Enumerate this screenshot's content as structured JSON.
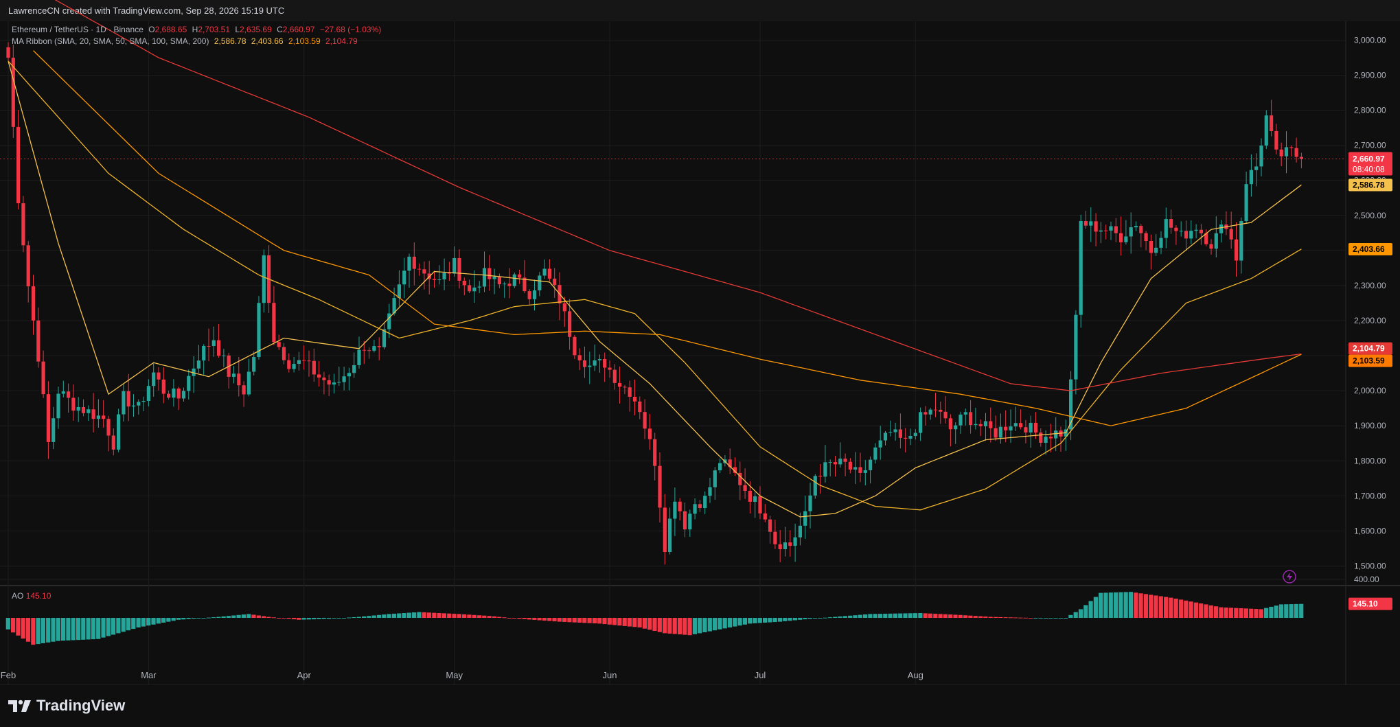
{
  "header": {
    "credit": "LawrenceCN created with TradingView.com, Sep 28, 2026 15:19 UTC"
  },
  "legend": {
    "symbol": "Ethereum / TetherUS · 1D · Binance",
    "o_label": "O",
    "o_value": "2,688.65",
    "h_label": "H",
    "h_value": "2,703.51",
    "l_label": "L",
    "l_value": "2,635.69",
    "c_label": "C",
    "c_value": "2,660.97",
    "change": "−27.68 (−1.03%)",
    "ma_title": "MA Ribbon (SMA, 20, SMA, 50, SMA, 100, SMA, 200)",
    "ma20": "2,586.78",
    "ma50": "2,403.66",
    "ma100": "2,103.59",
    "ma200": "2,104.79"
  },
  "ao_legend": {
    "name": "AO",
    "value": "145.10"
  },
  "price_badges": {
    "last_price": "2,660.97",
    "countdown": "08:40:08",
    "ma20": "2,586.78",
    "ma50": "2,403.66",
    "ma200": "2,104.79",
    "ma100": "2,103.59",
    "ao": "145.10"
  },
  "brand": {
    "name": "TradingView"
  },
  "colors": {
    "up": "#26a69a",
    "down": "#f23645",
    "ma20": "#f5c14d",
    "ma50": "#f0b429",
    "ma100": "#ff9800",
    "ma200": "#e53935",
    "grid": "#1e1e1e",
    "background": "#0f0f0f"
  },
  "chart_data": [
    {
      "type": "candlestick",
      "title": "Ethereum / TetherUS · 1D · Binance",
      "y_ticks": [
        "1,500.00",
        "1,600.00",
        "1,700.00",
        "1,800.00",
        "1,900.00",
        "2,000.00",
        "2,100.00",
        "2,200.00",
        "2,300.00",
        "2,400.00",
        "2,500.00",
        "2,600.00",
        "2,700.00",
        "2,800.00",
        "2,900.00",
        "3,000.00"
      ],
      "x_ticks": [
        "Feb",
        "Mar",
        "Apr",
        "May",
        "Jun",
        "Jul",
        "Aug"
      ],
      "ylim": [
        1450,
        3040
      ],
      "start_date": "2026-02-01",
      "close_anchors": [
        [
          0,
          2950
        ],
        [
          2,
          2550
        ],
        [
          4,
          2300
        ],
        [
          6,
          2100
        ],
        [
          8,
          1850
        ],
        [
          10,
          2000
        ],
        [
          13,
          1960
        ],
        [
          16,
          1940
        ],
        [
          19,
          1920
        ],
        [
          21,
          1850
        ],
        [
          23,
          1980
        ],
        [
          26,
          1950
        ],
        [
          29,
          2050
        ],
        [
          31,
          2000
        ],
        [
          34,
          1980
        ],
        [
          38,
          2100
        ],
        [
          41,
          2150
        ],
        [
          44,
          2050
        ],
        [
          47,
          2000
        ],
        [
          49,
          2100
        ],
        [
          51,
          2380
        ],
        [
          53,
          2150
        ],
        [
          56,
          2080
        ],
        [
          59,
          2080
        ],
        [
          62,
          2040
        ],
        [
          65,
          2010
        ],
        [
          68,
          2060
        ],
        [
          71,
          2130
        ],
        [
          74,
          2110
        ],
        [
          77,
          2250
        ],
        [
          80,
          2380
        ],
        [
          83,
          2340
        ],
        [
          86,
          2310
        ],
        [
          89,
          2360
        ],
        [
          92,
          2280
        ],
        [
          95,
          2330
        ],
        [
          98,
          2300
        ],
        [
          101,
          2320
        ],
        [
          104,
          2280
        ],
        [
          107,
          2340
        ],
        [
          110,
          2260
        ],
        [
          113,
          2120
        ],
        [
          116,
          2070
        ],
        [
          119,
          2080
        ],
        [
          122,
          2020
        ],
        [
          124,
          2000
        ],
        [
          126,
          1950
        ],
        [
          129,
          1800
        ],
        [
          131,
          1560
        ],
        [
          133,
          1700
        ],
        [
          135,
          1620
        ],
        [
          137,
          1680
        ],
        [
          139,
          1690
        ],
        [
          142,
          1800
        ],
        [
          145,
          1760
        ],
        [
          148,
          1700
        ],
        [
          151,
          1650
        ],
        [
          153,
          1570
        ],
        [
          156,
          1560
        ],
        [
          159,
          1640
        ],
        [
          161,
          1760
        ],
        [
          164,
          1790
        ],
        [
          167,
          1790
        ],
        [
          170,
          1750
        ],
        [
          173,
          1830
        ],
        [
          176,
          1880
        ],
        [
          179,
          1850
        ],
        [
          182,
          1920
        ],
        [
          185,
          1950
        ],
        [
          188,
          1890
        ],
        [
          191,
          1930
        ],
        [
          194,
          1900
        ],
        [
          197,
          1880
        ],
        [
          200,
          1910
        ],
        [
          203,
          1900
        ],
        [
          206,
          1870
        ],
        [
          209,
          1880
        ],
        [
          211,
          1880
        ],
        [
          213,
          2200
        ],
        [
          214,
          2480
        ],
        [
          216,
          2470
        ],
        [
          219,
          2460
        ],
        [
          222,
          2440
        ],
        [
          225,
          2480
        ],
        [
          228,
          2400
        ],
        [
          231,
          2480
        ],
        [
          234,
          2440
        ],
        [
          237,
          2470
        ],
        [
          240,
          2420
        ],
        [
          243,
          2480
        ],
        [
          245,
          2380
        ],
        [
          247,
          2600
        ],
        [
          249,
          2640
        ],
        [
          251,
          2780
        ],
        [
          253,
          2670
        ],
        [
          256,
          2680
        ],
        [
          258,
          2661
        ]
      ],
      "ma_names": [
        "MA20",
        "MA50",
        "MA100",
        "MA200"
      ],
      "ma_anchors": {
        "MA20": [
          [
            0,
            2940
          ],
          [
            10,
            2420
          ],
          [
            20,
            1990
          ],
          [
            29,
            2080
          ],
          [
            40,
            2040
          ],
          [
            55,
            2150
          ],
          [
            70,
            2120
          ],
          [
            85,
            2340
          ],
          [
            95,
            2330
          ],
          [
            108,
            2310
          ],
          [
            118,
            2140
          ],
          [
            128,
            2020
          ],
          [
            140,
            1840
          ],
          [
            150,
            1700
          ],
          [
            158,
            1640
          ],
          [
            165,
            1650
          ],
          [
            173,
            1700
          ],
          [
            181,
            1780
          ],
          [
            195,
            1860
          ],
          [
            211,
            1880
          ],
          [
            218,
            2080
          ],
          [
            228,
            2320
          ],
          [
            240,
            2460
          ],
          [
            248,
            2480
          ],
          [
            258,
            2587
          ]
        ],
        "MA50": [
          [
            0,
            2940
          ],
          [
            20,
            2620
          ],
          [
            35,
            2460
          ],
          [
            50,
            2330
          ],
          [
            62,
            2260
          ],
          [
            78,
            2150
          ],
          [
            92,
            2200
          ],
          [
            101,
            2240
          ],
          [
            115,
            2260
          ],
          [
            125,
            2220
          ],
          [
            135,
            2080
          ],
          [
            150,
            1840
          ],
          [
            162,
            1730
          ],
          [
            173,
            1670
          ],
          [
            182,
            1660
          ],
          [
            195,
            1720
          ],
          [
            210,
            1850
          ],
          [
            222,
            2060
          ],
          [
            235,
            2250
          ],
          [
            248,
            2320
          ],
          [
            258,
            2404
          ]
        ],
        "MA100": [
          [
            5,
            2970
          ],
          [
            30,
            2620
          ],
          [
            55,
            2400
          ],
          [
            72,
            2330
          ],
          [
            85,
            2190
          ],
          [
            101,
            2160
          ],
          [
            115,
            2170
          ],
          [
            130,
            2160
          ],
          [
            150,
            2090
          ],
          [
            170,
            2030
          ],
          [
            190,
            1990
          ],
          [
            205,
            1950
          ],
          [
            220,
            1900
          ],
          [
            235,
            1950
          ],
          [
            250,
            2050
          ],
          [
            258,
            2104
          ]
        ],
        "MA200": [
          [
            5,
            3150
          ],
          [
            30,
            2950
          ],
          [
            60,
            2780
          ],
          [
            90,
            2580
          ],
          [
            120,
            2400
          ],
          [
            150,
            2280
          ],
          [
            175,
            2150
          ],
          [
            200,
            2020
          ],
          [
            212,
            2000
          ],
          [
            230,
            2050
          ],
          [
            250,
            2090
          ],
          [
            258,
            2105
          ]
        ]
      }
    },
    {
      "type": "bar",
      "title": "AO",
      "ytick": "400.00",
      "last_value": 145.1,
      "value_anchors": [
        [
          0,
          -120
        ],
        [
          5,
          -280
        ],
        [
          10,
          -240
        ],
        [
          18,
          -220
        ],
        [
          26,
          -100
        ],
        [
          34,
          -20
        ],
        [
          42,
          10
        ],
        [
          48,
          40
        ],
        [
          52,
          10
        ],
        [
          58,
          -20
        ],
        [
          64,
          -10
        ],
        [
          70,
          10
        ],
        [
          76,
          40
        ],
        [
          82,
          60
        ],
        [
          90,
          40
        ],
        [
          96,
          20
        ],
        [
          102,
          -10
        ],
        [
          110,
          -40
        ],
        [
          118,
          -60
        ],
        [
          126,
          -100
        ],
        [
          131,
          -160
        ],
        [
          136,
          -180
        ],
        [
          142,
          -120
        ],
        [
          148,
          -60
        ],
        [
          154,
          -40
        ],
        [
          160,
          -10
        ],
        [
          165,
          10
        ],
        [
          172,
          40
        ],
        [
          182,
          50
        ],
        [
          190,
          30
        ],
        [
          196,
          10
        ],
        [
          204,
          0
        ],
        [
          211,
          0
        ],
        [
          214,
          90
        ],
        [
          218,
          260
        ],
        [
          224,
          270
        ],
        [
          232,
          210
        ],
        [
          242,
          110
        ],
        [
          250,
          90
        ],
        [
          254,
          140
        ],
        [
          258,
          145
        ]
      ]
    }
  ]
}
